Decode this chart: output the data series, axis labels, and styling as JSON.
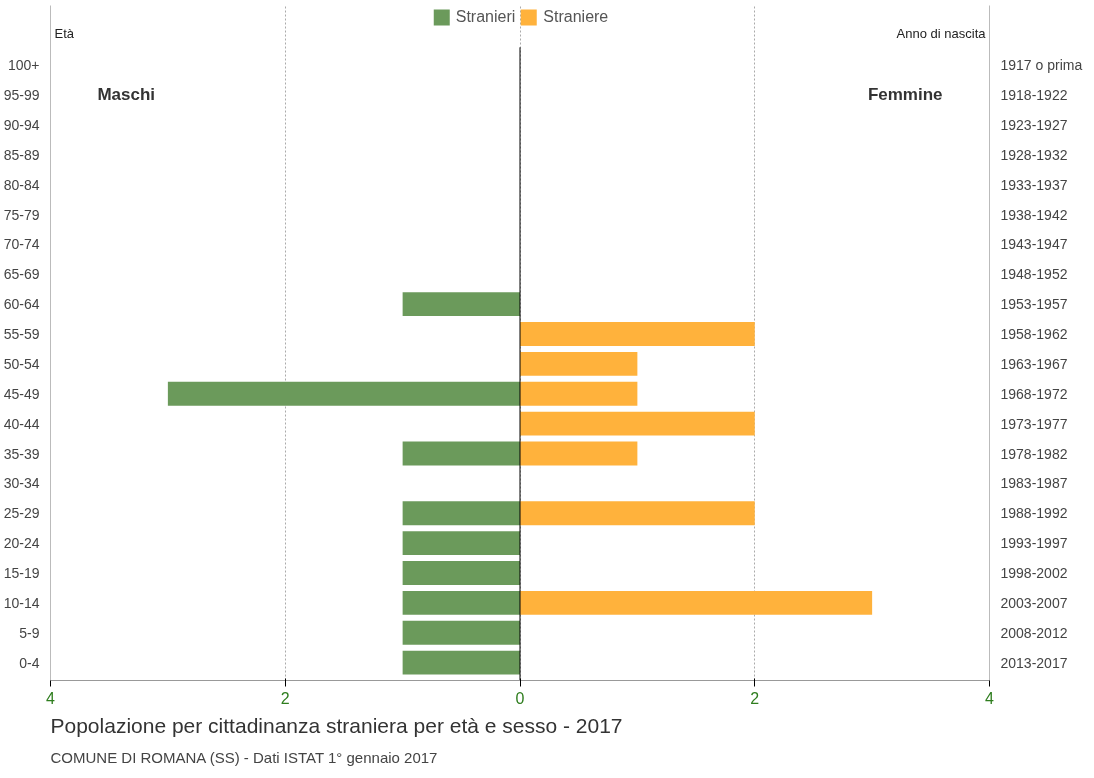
{
  "chart_data": {
    "type": "bar",
    "orientation": "horizontal",
    "title": "Popolazione per cittadinanza straniera per età e sesso - 2017",
    "subtitle": "COMUNE DI ROMANA (SS) - Dati ISTAT 1° gennaio 2017",
    "ylabel": "Età",
    "y2label": "Anno di nascita",
    "categories": [
      "100+",
      "95-99",
      "90-94",
      "85-89",
      "80-84",
      "75-79",
      "70-74",
      "65-69",
      "60-64",
      "55-59",
      "50-54",
      "45-49",
      "40-44",
      "35-39",
      "30-34",
      "25-29",
      "20-24",
      "15-19",
      "10-14",
      "5-9",
      "0-4"
    ],
    "y2_categories": [
      "1917 o prima",
      "1918-1922",
      "1923-1927",
      "1928-1932",
      "1933-1937",
      "1938-1942",
      "1943-1947",
      "1948-1952",
      "1953-1957",
      "1958-1962",
      "1963-1967",
      "1968-1972",
      "1973-1977",
      "1978-1982",
      "1983-1987",
      "1988-1992",
      "1993-1997",
      "1998-2002",
      "2003-2007",
      "2008-2012",
      "2013-2017"
    ],
    "series": [
      {
        "name": "Stranieri",
        "color": "#6b9a5b",
        "values": [
          0,
          0,
          0,
          0,
          0,
          0,
          0,
          0,
          -1,
          0,
          0,
          -3,
          0,
          -1,
          0,
          -1,
          -1,
          -1,
          -1,
          -1,
          -1
        ]
      },
      {
        "name": "Straniere",
        "color": "#ffb23c",
        "values": [
          0,
          0,
          0,
          0,
          0,
          0,
          0,
          0,
          0,
          2,
          1,
          1,
          2,
          1,
          0,
          2,
          0,
          0,
          3,
          0,
          0
        ]
      }
    ],
    "xlim": [
      -4,
      4
    ],
    "xticks": [
      {
        "value": -4,
        "label": "4"
      },
      {
        "value": -2,
        "label": "2"
      },
      0,
      2,
      4
    ],
    "ref_lines": [
      {
        "axis": "x",
        "value": 0,
        "color": "#000000"
      }
    ],
    "annotations": [
      "Maschi",
      "Femmine"
    ],
    "grid": "x",
    "legend": "top"
  }
}
